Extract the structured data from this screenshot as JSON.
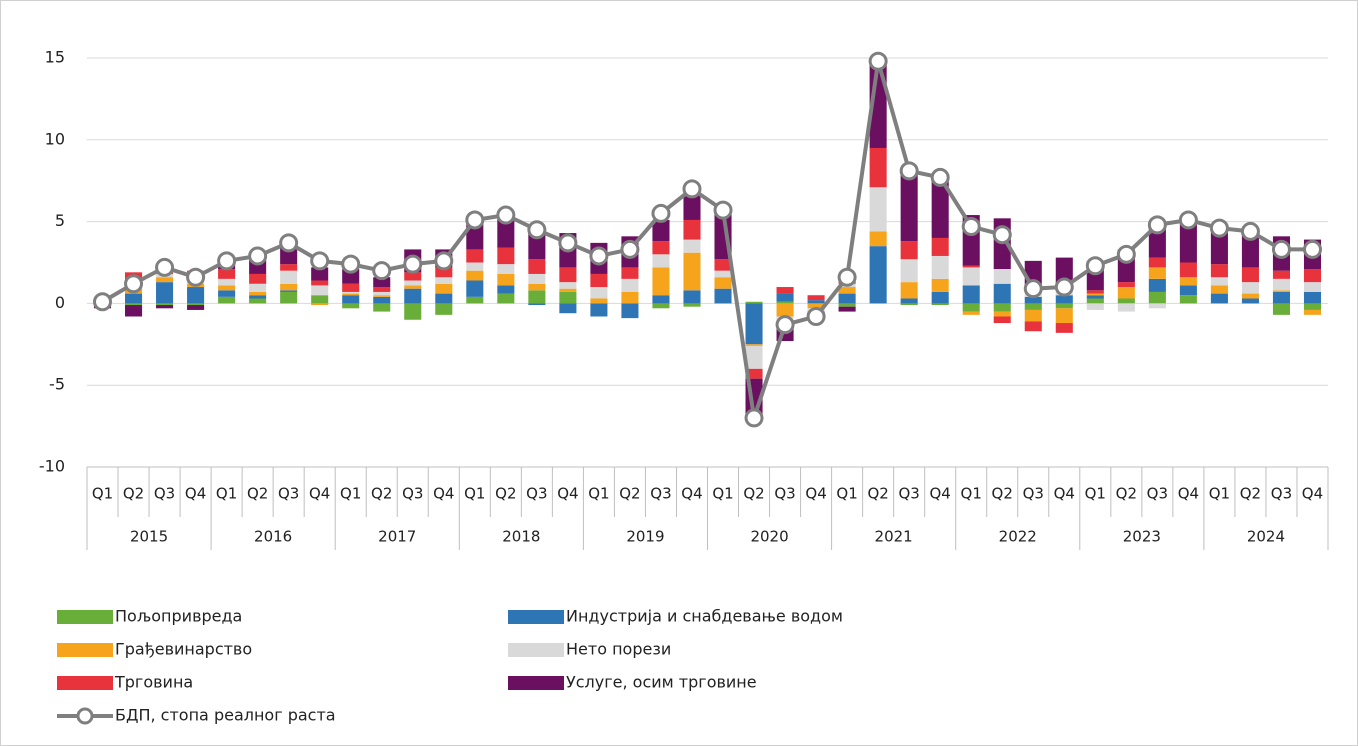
{
  "chart_data": {
    "type": "stacked_bar_line",
    "categories": [
      "Q1",
      "Q2",
      "Q3",
      "Q4",
      "Q1",
      "Q2",
      "Q3",
      "Q4",
      "Q1",
      "Q2",
      "Q3",
      "Q4",
      "Q1",
      "Q2",
      "Q3",
      "Q4",
      "Q1",
      "Q2",
      "Q3",
      "Q4",
      "Q1",
      "Q2",
      "Q3",
      "Q4",
      "Q1",
      "Q2",
      "Q3",
      "Q4",
      "Q1",
      "Q2",
      "Q3",
      "Q4",
      "Q1",
      "Q2",
      "Q3",
      "Q4",
      "Q1",
      "Q2",
      "Q3",
      "Q4"
    ],
    "years": [
      "2015",
      "2016",
      "2017",
      "2018",
      "2019",
      "2020",
      "2021",
      "2022",
      "2023",
      "2024"
    ],
    "ylim": [
      -10,
      15
    ],
    "yticks": [
      -10,
      -5,
      0,
      5,
      10,
      15
    ],
    "grid": true,
    "series": [
      {
        "name": "Пољопривреда",
        "color": "#6aae3a",
        "values": [
          -0.1,
          -0.1,
          -0.1,
          -0.1,
          0.4,
          0.3,
          0.7,
          0.5,
          -0.3,
          -0.5,
          -1.0,
          -0.7,
          0.4,
          0.6,
          0.8,
          0.7,
          0,
          0,
          -0.3,
          -0.2,
          0,
          0.1,
          0.1,
          0,
          -0.2,
          0,
          -0.1,
          -0.1,
          -0.5,
          -0.5,
          -0.4,
          -0.3,
          0.3,
          0.3,
          0.7,
          0.5,
          0,
          0,
          -0.7,
          -0.4
        ]
      },
      {
        "name": "Индустрија и снабдевање водом",
        "color": "#2e75b6",
        "values": [
          0.1,
          0.6,
          1.3,
          1.0,
          0.4,
          0.2,
          0.1,
          0,
          0.5,
          0.4,
          0.9,
          0.6,
          1.0,
          0.5,
          -0.1,
          -0.6,
          -0.8,
          -0.9,
          0.5,
          0.8,
          0.9,
          -2.5,
          0.5,
          0.2,
          0.6,
          3.5,
          0.3,
          0.7,
          1.1,
          1.2,
          0.4,
          0.5,
          0.2,
          0,
          0.8,
          0.6,
          0.6,
          0.3,
          0.7,
          0.7
        ]
      },
      {
        "name": "Грађевинарство",
        "color": "#f7a41d",
        "values": [
          0,
          0.3,
          0.3,
          0.2,
          0.3,
          0.2,
          0.4,
          -0.1,
          0.1,
          0.1,
          0.2,
          0.6,
          0.6,
          0.7,
          0.4,
          0.2,
          0.3,
          0.7,
          1.7,
          2.3,
          0.7,
          -0.1,
          -0.8,
          -0.3,
          0.4,
          0.9,
          1.0,
          0.8,
          -0.2,
          -0.3,
          -0.7,
          -0.9,
          0.1,
          0.7,
          0.7,
          0.5,
          0.5,
          0.3,
          0.1,
          -0.3
        ]
      },
      {
        "name": "Нето порези",
        "color": "#d9d9d9",
        "values": [
          0,
          0.5,
          0.2,
          0.5,
          0.4,
          0.5,
          0.8,
          0.6,
          0.1,
          0.2,
          0.3,
          0.4,
          0.5,
          0.6,
          0.6,
          0.4,
          0.7,
          0.8,
          0.8,
          0.8,
          0.4,
          -1.4,
          -0.5,
          -0.2,
          0.2,
          2.7,
          1.4,
          1.4,
          1.1,
          0.9,
          0.3,
          0.3,
          -0.4,
          -0.5,
          -0.3,
          0,
          0.5,
          0.7,
          0.7,
          0.6
        ]
      },
      {
        "name": "Трговина",
        "color": "#e8323c",
        "values": [
          0,
          0.5,
          0.1,
          0.3,
          0.6,
          0.6,
          0.4,
          0.3,
          0.5,
          0.3,
          0.5,
          0.6,
          0.8,
          1.0,
          0.9,
          0.9,
          0.8,
          0.7,
          0.8,
          1.2,
          0.7,
          -0.6,
          0.4,
          0.3,
          0.2,
          2.4,
          1.1,
          1.1,
          0.1,
          -0.4,
          -0.6,
          -0.6,
          0.2,
          0.3,
          0.6,
          0.9,
          0.8,
          0.9,
          0.5,
          0.8
        ]
      },
      {
        "name": "Услуге, осим трговине",
        "color": "#6b1060",
        "values": [
          -0.2,
          -0.7,
          -0.2,
          -0.3,
          0.5,
          0.9,
          1.5,
          0.8,
          0.9,
          0.6,
          1.4,
          1.1,
          1.8,
          1.8,
          1.8,
          2.1,
          1.9,
          1.9,
          1.3,
          1.9,
          3.0,
          -2.5,
          -1.0,
          -0.4,
          -0.3,
          5.3,
          4.4,
          3.7,
          3.1,
          3.1,
          1.9,
          2.0,
          1.8,
          2.0,
          2.0,
          2.5,
          2.1,
          2.3,
          2.1,
          1.8
        ]
      }
    ],
    "line": {
      "name": "БДП, стопа реалног раста",
      "color": "#7f7f7f",
      "values": [
        0.1,
        1.2,
        2.2,
        1.6,
        2.6,
        2.9,
        3.7,
        2.6,
        2.4,
        2.0,
        2.4,
        2.6,
        5.1,
        5.4,
        4.5,
        3.7,
        2.9,
        3.3,
        5.5,
        7.0,
        5.7,
        -7.0,
        -1.3,
        -0.8,
        1.6,
        14.8,
        8.1,
        7.7,
        4.7,
        4.2,
        0.9,
        1.0,
        2.3,
        3.0,
        4.8,
        5.1,
        4.6,
        4.4,
        3.3,
        3.3
      ]
    }
  }
}
